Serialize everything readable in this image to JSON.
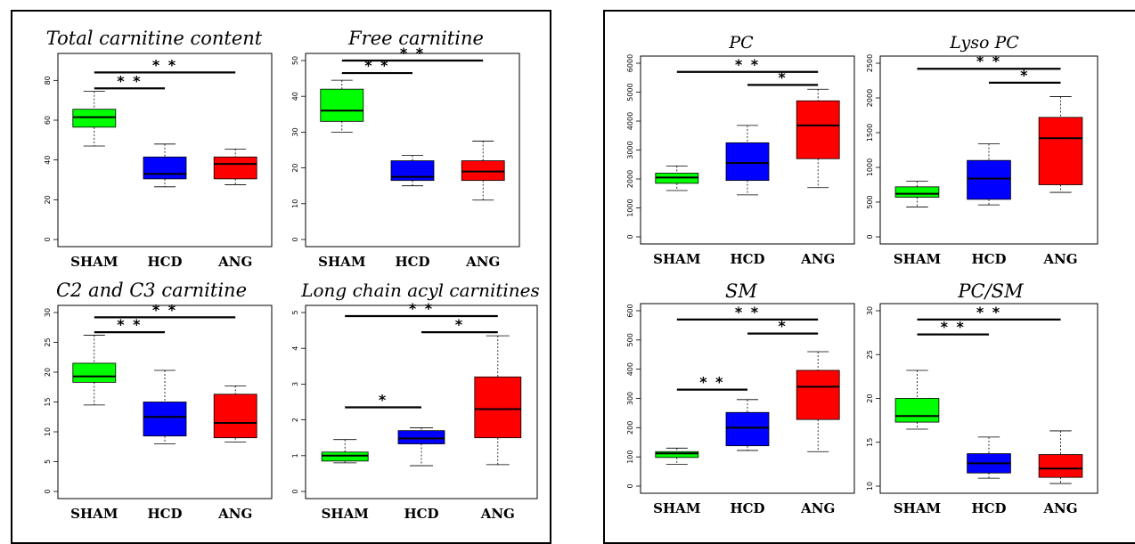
{
  "panels": [
    {
      "name": "left-panel"
    },
    {
      "name": "right-panel"
    }
  ],
  "chart_data": [
    {
      "type": "box",
      "title": "Total carnitine content",
      "categories": [
        "SHAM",
        "HCD",
        "ANG"
      ],
      "ylim": [
        0,
        90
      ],
      "yticks": [
        0,
        20,
        40,
        60,
        80
      ],
      "boxes": [
        {
          "min": 47,
          "q1": 56.5,
          "median": 61.5,
          "q3": 65.5,
          "max": 74.5,
          "color": "#00ff00"
        },
        {
          "min": 26.5,
          "q1": 30.5,
          "median": 33,
          "q3": 41.5,
          "max": 48,
          "color": "#0000ff"
        },
        {
          "min": 27.5,
          "q1": 30.5,
          "median": 38,
          "q3": 41.5,
          "max": 45.5,
          "color": "#ff0000"
        }
      ],
      "significance": [
        {
          "from": 0,
          "to": 2,
          "y": 84,
          "label": "* *"
        },
        {
          "from": 0,
          "to": 1,
          "y": 76,
          "label": "* *"
        }
      ]
    },
    {
      "type": "box",
      "title": "Free carnitine",
      "categories": [
        "SHAM",
        "HCD",
        "ANG"
      ],
      "ylim": [
        0,
        50
      ],
      "yticks": [
        0,
        10,
        20,
        30,
        40,
        50
      ],
      "boxes": [
        {
          "min": 30,
          "q1": 33,
          "median": 36,
          "q3": 42,
          "max": 44.5,
          "color": "#00ff00"
        },
        {
          "min": 15,
          "q1": 16.5,
          "median": 17.5,
          "q3": 22,
          "max": 23.5,
          "color": "#0000ff"
        },
        {
          "min": 11,
          "q1": 16.5,
          "median": 19,
          "q3": 22,
          "max": 27.5,
          "color": "#ff0000"
        }
      ],
      "significance": [
        {
          "from": 0,
          "to": 2,
          "y": 50,
          "label": "* *"
        },
        {
          "from": 0,
          "to": 1,
          "y": 46.5,
          "label": "* *"
        }
      ]
    },
    {
      "type": "box",
      "title": "C2 and C3 carnitine",
      "categories": [
        "SHAM",
        "HCD",
        "ANG"
      ],
      "ylim": [
        0,
        30
      ],
      "yticks": [
        0,
        5,
        10,
        15,
        20,
        25,
        30
      ],
      "boxes": [
        {
          "min": 14.5,
          "q1": 18.3,
          "median": 19.3,
          "q3": 21.5,
          "max": 26.2,
          "color": "#00ff00"
        },
        {
          "min": 8,
          "q1": 9.3,
          "median": 12.5,
          "q3": 15,
          "max": 20.3,
          "color": "#0000ff"
        },
        {
          "min": 8.3,
          "q1": 9,
          "median": 11.5,
          "q3": 16.3,
          "max": 17.7,
          "color": "#ff0000"
        }
      ],
      "significance": [
        {
          "from": 0,
          "to": 2,
          "y": 29.2,
          "label": "* *"
        },
        {
          "from": 0,
          "to": 1,
          "y": 26.7,
          "label": "* *"
        }
      ]
    },
    {
      "type": "box",
      "title": "Long chain acyl carnitines",
      "categories": [
        "SHAM",
        "HCD",
        "ANG"
      ],
      "ylim": [
        0,
        5
      ],
      "yticks": [
        0,
        1,
        2,
        3,
        4,
        5
      ],
      "boxes": [
        {
          "min": 0.8,
          "q1": 0.85,
          "median": 1,
          "q3": 1.1,
          "max": 1.45,
          "color": "#00ff00"
        },
        {
          "min": 0.72,
          "q1": 1.33,
          "median": 1.48,
          "q3": 1.7,
          "max": 1.78,
          "color": "#0000ff"
        },
        {
          "min": 0.75,
          "q1": 1.5,
          "median": 2.3,
          "q3": 3.2,
          "max": 4.35,
          "color": "#ff0000"
        }
      ],
      "significance": [
        {
          "from": 0,
          "to": 2,
          "y": 4.9,
          "label": "* *"
        },
        {
          "from": 1,
          "to": 2,
          "y": 4.45,
          "label": "*"
        },
        {
          "from": 0,
          "to": 1,
          "y": 2.35,
          "label": "*"
        }
      ]
    },
    {
      "type": "box",
      "title": "PC",
      "categories": [
        "SHAM",
        "HCD",
        "ANG"
      ],
      "ylim": [
        0,
        6000
      ],
      "yticks": [
        0,
        1000,
        2000,
        3000,
        4000,
        5000,
        6000
      ],
      "boxes": [
        {
          "min": 1600,
          "q1": 1850,
          "median": 2050,
          "q3": 2200,
          "max": 2450,
          "color": "#00ff00"
        },
        {
          "min": 1450,
          "q1": 1950,
          "median": 2550,
          "q3": 3250,
          "max": 3850,
          "color": "#0000ff"
        },
        {
          "min": 1700,
          "q1": 2700,
          "median": 3850,
          "q3": 4700,
          "max": 5100,
          "color": "#ff0000"
        }
      ],
      "significance": [
        {
          "from": 0,
          "to": 2,
          "y": 5700,
          "label": "* *"
        },
        {
          "from": 1,
          "to": 2,
          "y": 5250,
          "label": "*"
        }
      ]
    },
    {
      "type": "box",
      "title": "Lyso PC",
      "categories": [
        "SHAM",
        "HCD",
        "ANG"
      ],
      "ylim": [
        0,
        2500
      ],
      "yticks": [
        0,
        500,
        1000,
        1500,
        2000,
        2500
      ],
      "boxes": [
        {
          "min": 430,
          "q1": 570,
          "median": 620,
          "q3": 720,
          "max": 800,
          "color": "#00ff00"
        },
        {
          "min": 460,
          "q1": 540,
          "median": 840,
          "q3": 1100,
          "max": 1340,
          "color": "#0000ff"
        },
        {
          "min": 640,
          "q1": 750,
          "median": 1420,
          "q3": 1720,
          "max": 2020,
          "color": "#ff0000"
        }
      ],
      "significance": [
        {
          "from": 0,
          "to": 2,
          "y": 2420,
          "label": "* *"
        },
        {
          "from": 1,
          "to": 2,
          "y": 2220,
          "label": "*"
        }
      ]
    },
    {
      "type": "box",
      "title": "SM",
      "categories": [
        "SHAM",
        "HCD",
        "ANG"
      ],
      "ylim": [
        0,
        600
      ],
      "yticks": [
        0,
        100,
        200,
        300,
        400,
        500,
        600
      ],
      "boxes": [
        {
          "min": 75,
          "q1": 98,
          "median": 112,
          "q3": 118,
          "max": 130,
          "color": "#00ff00"
        },
        {
          "min": 122,
          "q1": 138,
          "median": 200,
          "q3": 252,
          "max": 296,
          "color": "#0000ff"
        },
        {
          "min": 118,
          "q1": 228,
          "median": 340,
          "q3": 396,
          "max": 460,
          "color": "#ff0000"
        }
      ],
      "significance": [
        {
          "from": 0,
          "to": 2,
          "y": 570,
          "label": "* *"
        },
        {
          "from": 1,
          "to": 2,
          "y": 522,
          "label": "*"
        },
        {
          "from": 0,
          "to": 1,
          "y": 330,
          "label": "* *"
        }
      ]
    },
    {
      "type": "box",
      "title": "PC/SM",
      "categories": [
        "SHAM",
        "HCD",
        "ANG"
      ],
      "ylim": [
        10,
        30
      ],
      "yticks": [
        10,
        15,
        20,
        25,
        30
      ],
      "boxes": [
        {
          "min": 16.5,
          "q1": 17.3,
          "median": 18,
          "q3": 20,
          "max": 23.2,
          "color": "#00ff00"
        },
        {
          "min": 10.9,
          "q1": 11.5,
          "median": 12.6,
          "q3": 13.7,
          "max": 15.6,
          "color": "#0000ff"
        },
        {
          "min": 10.3,
          "q1": 11,
          "median": 12,
          "q3": 13.6,
          "max": 16.3,
          "color": "#ff0000"
        }
      ],
      "significance": [
        {
          "from": 0,
          "to": 2,
          "y": 29,
          "label": "* *"
        },
        {
          "from": 0,
          "to": 1,
          "y": 27.3,
          "label": "* *"
        }
      ]
    }
  ]
}
